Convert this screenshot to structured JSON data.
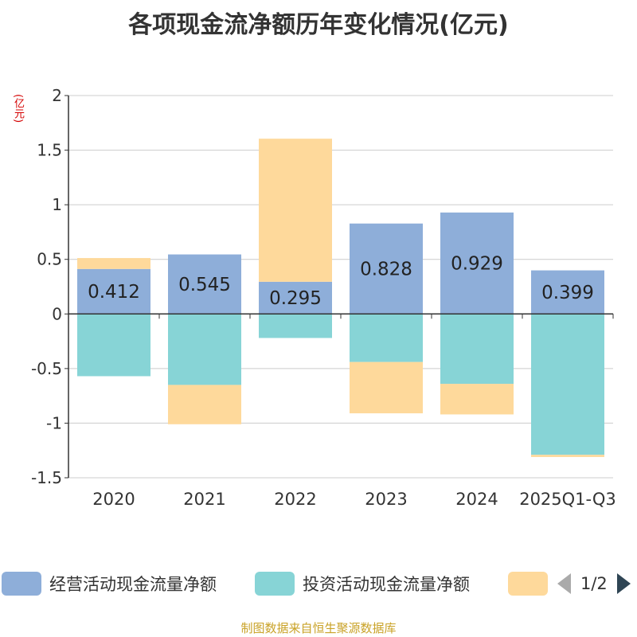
{
  "chart_data": {
    "type": "bar",
    "stacked": true,
    "title": "各项现金流净额历年变化情况(亿元)",
    "ylabel": "(亿元)",
    "xlabel": "",
    "categories": [
      "2020",
      "2021",
      "2022",
      "2023",
      "2024",
      "2025Q1-Q3"
    ],
    "ylim": [
      -1.5,
      2
    ],
    "yticks": [
      2,
      1.5,
      1,
      0.5,
      0,
      -0.5,
      -1,
      -1.5
    ],
    "ytick_labels": [
      "2",
      "1.5",
      "1",
      "0.5",
      "0",
      "-0.5",
      "-1",
      "-1.5"
    ],
    "grid": true,
    "series": [
      {
        "name": "经营活动现金流量净额",
        "color": "#8eaed9",
        "values": [
          0.412,
          0.545,
          0.295,
          0.828,
          0.929,
          0.399
        ],
        "labels": [
          "0.412",
          "0.545",
          "0.295",
          "0.828",
          "0.929",
          "0.399"
        ]
      },
      {
        "name": "投资活动现金流量净额",
        "color": "#87d4d6",
        "values": [
          -0.57,
          -0.65,
          -0.22,
          -0.44,
          -0.64,
          -1.29
        ]
      },
      {
        "name": "",
        "color": "#fed99b",
        "values": [
          0.1,
          -0.36,
          1.31,
          -0.47,
          -0.28,
          -0.02
        ]
      }
    ]
  },
  "legend": {
    "items": [
      {
        "label": "经营活动现金流量净额",
        "color": "#8eaed9"
      },
      {
        "label": "投资活动现金流量净额",
        "color": "#87d4d6"
      },
      {
        "label": "",
        "color": "#fed99b"
      }
    ],
    "page": "1/2"
  },
  "footer": "制图数据来自恒生聚源数据库"
}
